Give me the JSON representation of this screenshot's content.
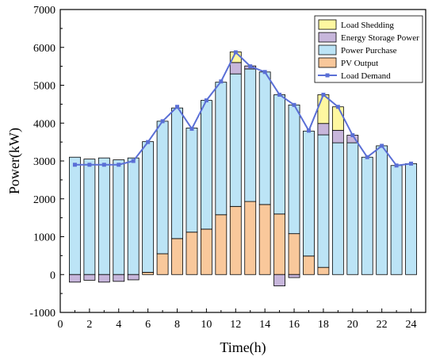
{
  "chart_data": {
    "type": "bar",
    "stacked": true,
    "xlabel": "Time(h)",
    "ylabel": "Power(kW)",
    "xlim": [
      0,
      25
    ],
    "ylim": [
      -1000,
      7000
    ],
    "x_ticks": [
      0,
      2,
      4,
      6,
      8,
      10,
      12,
      14,
      16,
      18,
      20,
      22,
      24
    ],
    "y_ticks": [
      -1000,
      0,
      1000,
      2000,
      3000,
      4000,
      5000,
      6000,
      7000
    ],
    "grid": false,
    "legend_position": "top-right",
    "x": [
      1,
      2,
      3,
      4,
      5,
      6,
      7,
      8,
      9,
      10,
      11,
      12,
      13,
      14,
      15,
      16,
      17,
      18,
      19,
      20,
      21,
      22,
      23,
      24
    ],
    "series": [
      {
        "name": "PV Output",
        "kind": "bar",
        "color": "#F9C89B",
        "values": [
          0,
          0,
          0,
          0,
          0,
          60,
          550,
          950,
          1120,
          1200,
          1580,
          1800,
          1930,
          1850,
          1600,
          1080,
          490,
          190,
          0,
          0,
          0,
          0,
          0,
          0
        ]
      },
      {
        "name": "Power Purchase",
        "kind": "bar",
        "color": "#BCE4F6",
        "values": [
          3100,
          3050,
          3080,
          3030,
          3080,
          3450,
          3500,
          3450,
          2750,
          3400,
          3500,
          3500,
          3500,
          3500,
          3150,
          3400,
          3300,
          3500,
          3480,
          3480,
          3100,
          3400,
          2880,
          2930
        ]
      },
      {
        "name": "Energy Storage Power",
        "kind": "bar",
        "color": "#C7B6DB",
        "values": [
          -200,
          -150,
          -200,
          -180,
          -140,
          0,
          0,
          0,
          0,
          0,
          0,
          300,
          80,
          0,
          -300,
          -80,
          0,
          300,
          330,
          200,
          0,
          0,
          0,
          0
        ]
      },
      {
        "name": "Load Shedding",
        "kind": "bar",
        "color": "#FEF7A0",
        "values": [
          0,
          0,
          0,
          0,
          0,
          0,
          0,
          0,
          0,
          0,
          0,
          280,
          0,
          0,
          0,
          0,
          0,
          760,
          620,
          0,
          0,
          0,
          0,
          0
        ]
      },
      {
        "name": "Load Demand",
        "kind": "line",
        "color": "#5A6FD6",
        "values": [
          2900,
          2900,
          2900,
          2900,
          3000,
          3500,
          4050,
          4430,
          3850,
          4600,
          5100,
          5870,
          5500,
          5350,
          4750,
          4480,
          3800,
          4750,
          4430,
          3680,
          3100,
          3400,
          2880,
          2930
        ]
      }
    ],
    "legend_order": [
      "Load Shedding",
      "Energy Storage Power",
      "Power Purchase",
      "PV Output",
      "Load Demand"
    ]
  }
}
